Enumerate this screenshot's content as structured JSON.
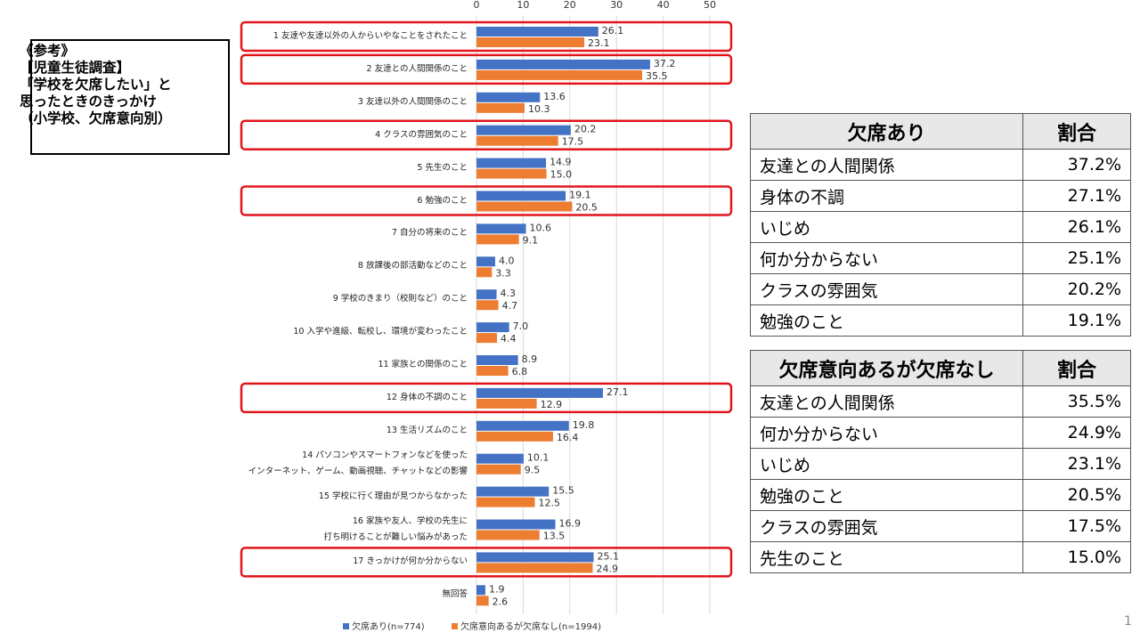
{
  "note": {
    "lines": [
      "《参考》",
      "【児童生徒調査】",
      "「学校を欠席したい」と",
      "思ったときのきっかけ",
      "（小学校、欠席意向別）"
    ]
  },
  "chart_data": {
    "type": "bar",
    "orientation": "horizontal",
    "categories": [
      "1 友達や友達以外の人からいやなことをされたこと",
      "2 友達との人間関係のこと",
      "3 友達以外の人間関係のこと",
      "4 クラスの雰囲気のこと",
      "5 先生のこと",
      "6 勉強のこと",
      "7 自分の将来のこと",
      "8 放課後の部活動などのこと",
      "9 学校のきまり（校則など）のこと",
      "10 入学や進級、転校し、環境が変わったこと",
      "11 家族との関係のこと",
      "12 身体の不調のこと",
      "13 生活リズムのこと",
      "14 パソコンやスマートフォンなどを使った\nインターネット、ゲーム、動画視聴、チャットなどの影響",
      "15 学校に行く理由が見つからなかった",
      "16 家族や友人、学校の先生に\n打ち明けることが難しい悩みがあった",
      "17 きっかけが何か分からない",
      "無回答"
    ],
    "series": [
      {
        "name": "欠席あり(n=774)",
        "color": "#4472c4",
        "values": [
          26.1,
          37.2,
          13.6,
          20.2,
          14.9,
          19.1,
          10.6,
          4.0,
          4.3,
          7.0,
          8.9,
          27.1,
          19.8,
          10.1,
          15.5,
          16.9,
          25.1,
          1.9
        ],
        "value_labels": [
          "26.1",
          "37.2",
          "13.6",
          "20.2",
          "14.9",
          "19.1",
          "10.6",
          "4.0",
          "4.3",
          "7.0",
          "8.9",
          "27.1",
          "19.8",
          "10.1",
          "15.5",
          "16.9",
          "25.1",
          "1.9"
        ]
      },
      {
        "name": "欠席意向あるが欠席なし(n=1994)",
        "color": "#ed7d31",
        "values": [
          23.1,
          35.5,
          10.3,
          17.5,
          15.0,
          20.5,
          9.1,
          3.3,
          4.7,
          4.4,
          6.8,
          12.9,
          16.4,
          9.5,
          12.5,
          13.5,
          24.9,
          2.6
        ],
        "value_labels": [
          "23.1",
          "35.5",
          "10.3",
          "17.5",
          "15.0",
          "20.5",
          "9.1",
          "3.3",
          "4.7",
          "4.4",
          "6.8",
          "12.9",
          "16.4",
          "9.5",
          "12.5",
          "13.5",
          "24.9",
          "2.6"
        ]
      }
    ],
    "xlim": [
      0,
      50
    ],
    "xticks": [
      0,
      10,
      20,
      30,
      40,
      50
    ],
    "grid": true,
    "highlight_color": "#e0161b",
    "highlighted": [
      0,
      1,
      3,
      5,
      11,
      16
    ]
  },
  "tables": [
    {
      "header": [
        "欠席あり",
        "割合"
      ],
      "rows": [
        [
          "友達との人間関係",
          "37.2%"
        ],
        [
          "身体の不調",
          "27.1%"
        ],
        [
          "いじめ",
          "26.1%"
        ],
        [
          "何か分からない",
          "25.1%"
        ],
        [
          "クラスの雰囲気",
          "20.2%"
        ],
        [
          "勉強のこと",
          "19.1%"
        ]
      ]
    },
    {
      "header": [
        "欠席意向あるが欠席なし",
        "割合"
      ],
      "rows": [
        [
          "友達との人間関係",
          "35.5%"
        ],
        [
          "何か分からない",
          "24.9%"
        ],
        [
          "いじめ",
          "23.1%"
        ],
        [
          "勉強のこと",
          "20.5%"
        ],
        [
          "クラスの雰囲気",
          "17.5%"
        ],
        [
          "先生のこと",
          "15.0%"
        ]
      ]
    }
  ],
  "page_number": "1"
}
